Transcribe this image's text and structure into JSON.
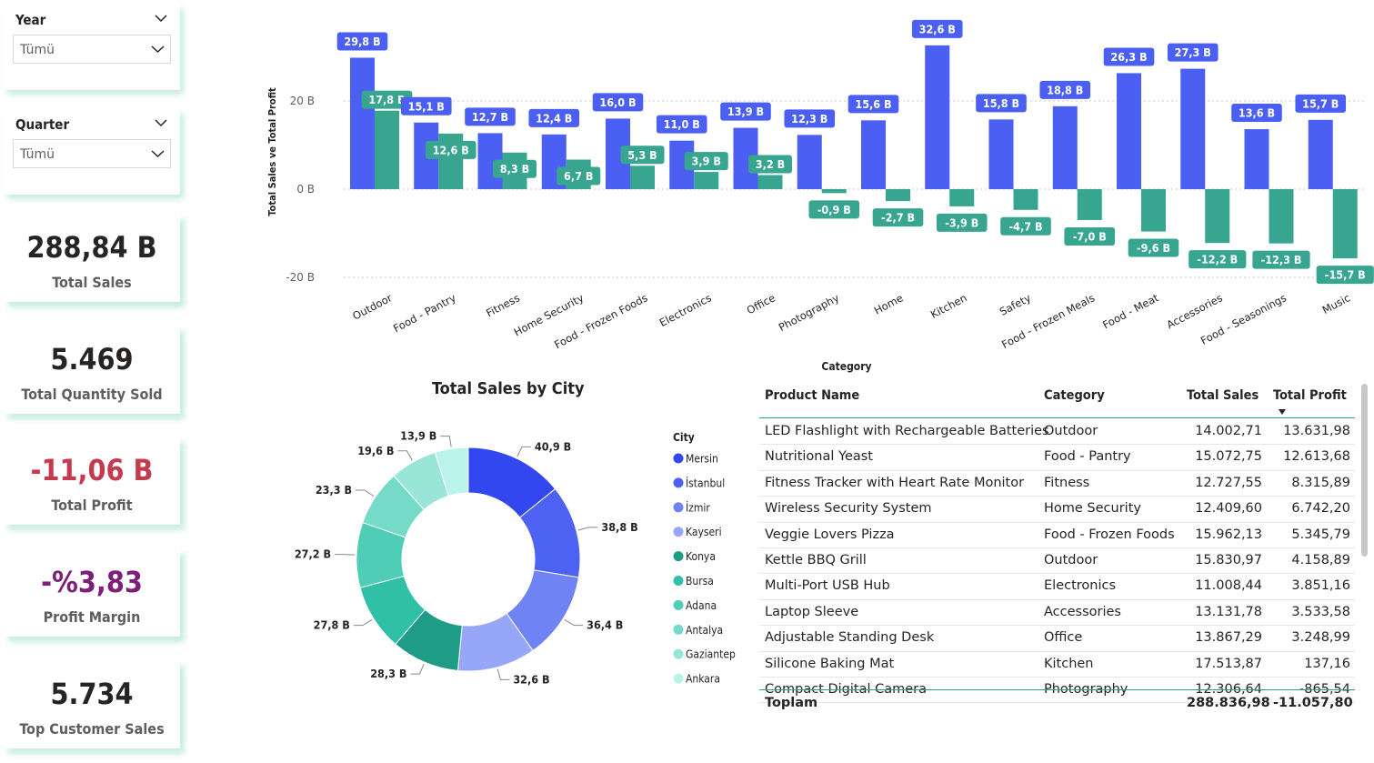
{
  "slicers": {
    "year": {
      "title": "Year",
      "value": "Tümü"
    },
    "quarter": {
      "title": "Quarter",
      "value": "Tümü"
    }
  },
  "kpis": {
    "total_sales": {
      "value": "288,84 B",
      "label": "Total Sales",
      "color": "#252423"
    },
    "total_quantity": {
      "value": "5.469",
      "label": "Total Quantity Sold",
      "color": "#252423"
    },
    "total_profit": {
      "value": "-11,06 B",
      "label": "Total Profit",
      "color": "#c43b4f"
    },
    "profit_margin": {
      "value": "-%3,83",
      "label": "Profit Margin",
      "color": "#7d1f7a"
    },
    "top_customer": {
      "value": "5.734",
      "label": "Top Customer Sales",
      "color": "#252423"
    }
  },
  "colors": {
    "sales": "#4b5ff2",
    "profit": "#37a590",
    "axis_text": "#252423"
  },
  "chart_data": [
    {
      "type": "bar",
      "xlabel": "Category",
      "ylabel": "Total Sales ve Total Profit",
      "ylim": [
        -22,
        34
      ],
      "yticks": [
        {
          "value": 20,
          "label": "20 B"
        },
        {
          "value": 0,
          "label": "0 B"
        },
        {
          "value": -20,
          "label": "-20 B"
        }
      ],
      "grid": true,
      "categories": [
        "Outdoor",
        "Food - Pantry",
        "Fitness",
        "Home Security",
        "Food - Frozen Foods",
        "Electronics",
        "Office",
        "Photography",
        "Home",
        "Kitchen",
        "Safety",
        "Food - Frozen Meals",
        "Food - Meat",
        "Accessories",
        "Food - Seasonings",
        "Music"
      ],
      "series": [
        {
          "name": "Total Sales",
          "values": [
            29.8,
            15.1,
            12.7,
            12.4,
            16.0,
            11.0,
            13.9,
            12.3,
            15.6,
            32.6,
            15.8,
            18.8,
            26.3,
            27.3,
            13.6,
            15.7
          ],
          "labels": [
            "29,8 B",
            "15,1 B",
            "12,7 B",
            "12,4 B",
            "16,0 B",
            "11,0 B",
            "13,9 B",
            "12,3 B",
            "15,6 B",
            "32,6 B",
            "15,8 B",
            "18,8 B",
            "26,3 B",
            "27,3 B",
            "13,6 B",
            "15,7 B"
          ]
        },
        {
          "name": "Total Profit",
          "values": [
            17.8,
            12.6,
            8.3,
            6.7,
            5.3,
            3.9,
            3.2,
            -0.9,
            -2.7,
            -3.9,
            -4.7,
            -7.0,
            -9.6,
            -12.2,
            -12.3,
            -15.7
          ],
          "labels": [
            "17,8 B",
            "12,6 B",
            "8,3 B",
            "6,7 B",
            "5,3 B",
            "3,9 B",
            "3,2 B",
            "-0,9 B",
            "-2,7 B",
            "-3,9 B",
            "-4,7 B",
            "-7,0 B",
            "-9,6 B",
            "-12,2 B",
            "-12,3 B",
            "-15,7 B"
          ]
        }
      ]
    },
    {
      "type": "pie",
      "title": "Total Sales by City",
      "legend_title": "City",
      "legend_position": "right",
      "categories": [
        "Mersin",
        "İstanbul",
        "İzmir",
        "Kayseri",
        "Konya",
        "Bursa",
        "Adana",
        "Antalya",
        "Gaziantep",
        "Ankara"
      ],
      "values": [
        40.9,
        38.8,
        36.4,
        32.6,
        28.3,
        27.8,
        27.2,
        23.3,
        19.6,
        13.9
      ],
      "labels": [
        "40,9 B",
        "38,8 B",
        "36,4 B",
        "32,6 B",
        "28,3 B",
        "27,8 B",
        "27,2 B",
        "23,3 B",
        "19,6 B",
        "13,9 B"
      ],
      "colors": [
        "#3347f0",
        "#4d62f2",
        "#6f83f4",
        "#96a7f7",
        "#1f9c86",
        "#2fc0a6",
        "#50cdb6",
        "#75dbc8",
        "#99e6d8",
        "#baf3e9"
      ]
    }
  ],
  "table": {
    "headers": [
      "Product Name",
      "Category",
      "Total Sales",
      "Total Profit"
    ],
    "rows": [
      [
        "LED Flashlight with Rechargeable Batteries",
        "Outdoor",
        "14.002,71",
        "13.631,98"
      ],
      [
        "Nutritional Yeast",
        "Food - Pantry",
        "15.072,75",
        "12.613,68"
      ],
      [
        "Fitness Tracker with Heart Rate Monitor",
        "Fitness",
        "12.727,55",
        "8.315,89"
      ],
      [
        "Wireless Security System",
        "Home Security",
        "12.409,60",
        "6.742,20"
      ],
      [
        "Veggie Lovers Pizza",
        "Food - Frozen Foods",
        "15.962,13",
        "5.345,79"
      ],
      [
        "Kettle BBQ Grill",
        "Outdoor",
        "15.830,97",
        "4.158,89"
      ],
      [
        "Multi-Port USB Hub",
        "Electronics",
        "11.008,44",
        "3.851,16"
      ],
      [
        "Laptop Sleeve",
        "Accessories",
        "13.131,78",
        "3.533,58"
      ],
      [
        "Adjustable Standing Desk",
        "Office",
        "13.867,29",
        "3.248,99"
      ],
      [
        "Silicone Baking Mat",
        "Kitchen",
        "17.513,87",
        "137,16"
      ],
      [
        "Compact Digital Camera",
        "Photography",
        "12.306,64",
        "-865,54"
      ]
    ],
    "total": {
      "label": "Toplam",
      "sales": "288.836,98",
      "profit": "-11.057,80"
    }
  }
}
